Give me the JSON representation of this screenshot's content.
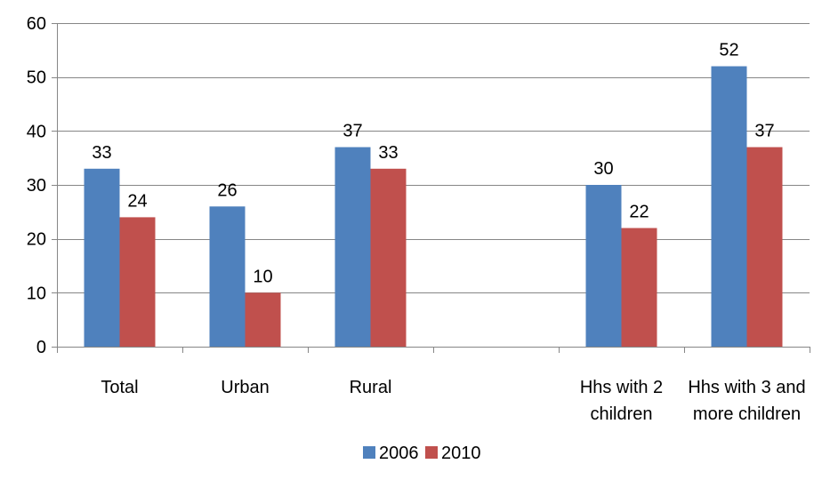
{
  "chart_data": {
    "type": "bar",
    "categories": [
      [
        "Total"
      ],
      [
        "Urban"
      ],
      [
        "Rural"
      ],
      [],
      [
        "Hhs with 2",
        "children"
      ],
      [
        "Hhs with 3 and",
        "more children"
      ]
    ],
    "series": [
      {
        "name": "2006",
        "color": "#4f81bd",
        "values": [
          33,
          26,
          37,
          null,
          30,
          52
        ]
      },
      {
        "name": "2010",
        "color": "#c0504d",
        "values": [
          24,
          10,
          33,
          null,
          22,
          37
        ]
      }
    ],
    "ylim": [
      0,
      60
    ],
    "yticks": [
      0,
      10,
      20,
      30,
      40,
      50,
      60
    ],
    "grid": true,
    "legend": "bottom-center"
  }
}
